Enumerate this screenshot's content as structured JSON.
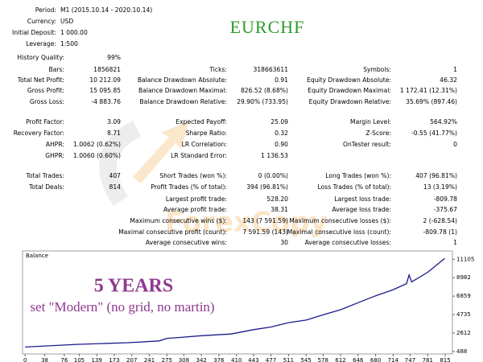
{
  "title": "EURCHF",
  "watermark": "ForexCopy",
  "header": [
    {
      "label": "Period:",
      "value": "M1 (2015.10.14 - 2020.10.14)"
    },
    {
      "label": "Currency:",
      "value": "USD"
    },
    {
      "label": "Initial Deposit:",
      "value": "1 000.00"
    },
    {
      "label": "Leverage:",
      "value": "1:500"
    }
  ],
  "stats": [
    {
      "left": {
        "label": "History Quality:",
        "value": "99%"
      }
    },
    {
      "left": {
        "label": "Bars:",
        "value": "1856821"
      },
      "middle": {
        "label": "Ticks:",
        "value": "318663611"
      },
      "right": {
        "label": "Symbols:",
        "value": "1"
      }
    },
    {
      "left": {
        "label": "Total Net Profit:",
        "value": "10 212.09"
      },
      "middle": {
        "label": "Balance Drawdown Absolute:",
        "value": "0.91"
      },
      "right": {
        "label": "Equity Drawdown Absolute:",
        "value": "46.32"
      }
    },
    {
      "left": {
        "label": "Gross Profit:",
        "value": "15 095.85"
      },
      "middle": {
        "label": "Balance Drawdown Maximal:",
        "value": "826.52 (8.68%)"
      },
      "right": {
        "label": "Equity Drawdown Maximal:",
        "value": "1 172.41 (12.31%)"
      }
    },
    {
      "left": {
        "label": "Gross Loss:",
        "value": "-4 883.76"
      },
      "middle": {
        "label": "Balance Drawdown Relative:",
        "value": "29.90% (733.95)"
      },
      "right": {
        "label": "Equity Drawdown Relative:",
        "value": "35.69% (897.46)"
      }
    },
    {
      "left": {
        "label": "Profit Factor:",
        "value": "3.09"
      },
      "middle": {
        "label": "Expected Payoff:",
        "value": "25.09"
      },
      "right": {
        "label": "Margin Level:",
        "value": "564.92%"
      }
    },
    {
      "left": {
        "label": "Recovery Factor:",
        "value": "8.71"
      },
      "middle": {
        "label": "Sharpe Ratio:",
        "value": "0.32"
      },
      "right": {
        "label": "Z-Score:",
        "value": "-0.55 (41.77%)"
      }
    },
    {
      "left": {
        "label": "AHPR:",
        "value": "1.0062 (0.62%)"
      },
      "middle": {
        "label": "LR Correlation:",
        "value": "0.90"
      },
      "right": {
        "label": "OnTester result:",
        "value": "0"
      }
    },
    {
      "left": {
        "label": "GHPR:",
        "value": "1.0060 (0.60%)"
      },
      "middle": {
        "label": "LR Standard Error:",
        "value": "1 136.53"
      }
    },
    {
      "left": {
        "label": "Total Trades:",
        "value": "407"
      },
      "middle": {
        "label": "Short Trades (won %):",
        "value": "0 (0.00%)"
      },
      "right": {
        "label": "Long Trades (won %):",
        "value": "407 (96.81%)"
      }
    },
    {
      "left": {
        "label": "Total Deals:",
        "value": "814"
      },
      "middle": {
        "label": "Profit Trades (% of total):",
        "value": "394 (96.81%)"
      },
      "right": {
        "label": "Loss Trades (% of total):",
        "value": "13 (3.19%)"
      }
    },
    {
      "middle": {
        "label": "Largest profit trade:",
        "value": "528.20"
      },
      "right": {
        "label": "Largest loss trade:",
        "value": "-809.78"
      }
    },
    {
      "middle": {
        "label": "Average profit trade:",
        "value": "38.31"
      },
      "right": {
        "label": "Average loss trade:",
        "value": "-375.67"
      }
    },
    {
      "middle": {
        "label": "Maximum consecutive wins ($):",
        "value": "143 (7 591.59)"
      },
      "right": {
        "label": "Maximum consecutive losses ($):",
        "value": "2 (-628.54)"
      }
    },
    {
      "middle": {
        "label": "Maximal consecutive profit (count):",
        "value": "7 591.59 (143)"
      },
      "right": {
        "label": "Maximal consecutive loss (count):",
        "value": "-809.78 (1)"
      }
    },
    {
      "middle": {
        "label": "Average consecutive wins:",
        "value": "30"
      },
      "right": {
        "label": "Average consecutive losses:",
        "value": "1"
      }
    }
  ],
  "annotations": [
    "5 YEARS",
    "set \"Modern\" (no grid, no martin)"
  ],
  "chart_data": {
    "type": "line",
    "title": "Balance",
    "color": "#1a1a8c",
    "x": [
      0,
      100,
      200,
      260,
      275,
      300,
      342,
      400,
      443,
      477,
      511,
      545,
      578,
      612,
      646,
      680,
      714,
      740,
      745,
      750,
      781,
      814
    ],
    "values": [
      1000,
      1300,
      1500,
      1700,
      2000,
      2100,
      2300,
      2500,
      3000,
      3300,
      3800,
      4100,
      4700,
      5300,
      6100,
      6900,
      7600,
      8300,
      9300,
      8500,
      9600,
      11212
    ],
    "xlim": [
      -5,
      829
    ],
    "ylim": [
      200,
      12060
    ],
    "xticks": [
      0,
      38,
      76,
      105,
      139,
      173,
      207,
      241,
      275,
      308,
      342,
      376,
      410,
      443,
      477,
      511,
      545,
      578,
      612,
      646,
      680,
      714,
      747,
      781,
      815
    ],
    "yticks": [
      488,
      2612,
      4735,
      6859,
      8982,
      11105
    ]
  }
}
